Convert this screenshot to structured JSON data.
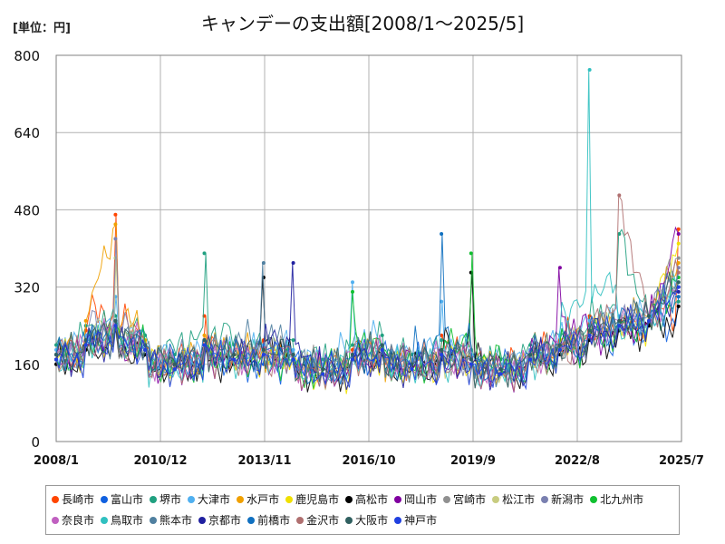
{
  "unit_label": "[単位：円]",
  "chart_data": {
    "type": "line",
    "title": "キャンデーの支出額[2008/1～2025/5]",
    "xlabel": "",
    "ylabel": "",
    "ylim": [
      0,
      800
    ],
    "yticks": [
      0,
      160,
      320,
      480,
      640,
      800
    ],
    "x_range": [
      "2008/1",
      "2025/5"
    ],
    "xticks": [
      "2008/1",
      "2010/12",
      "2013/11",
      "2016/10",
      "2019/9",
      "2022/8",
      "2025/7"
    ],
    "grid": true,
    "legend_position": "bottom",
    "series": [
      {
        "name": "長崎市",
        "color": "#ff4500",
        "values": [
          180,
          230,
          470,
          200,
          150,
          260,
          170,
          210,
          180,
          150,
          190,
          200,
          160,
          220,
          175,
          150,
          190,
          210,
          260,
          230,
          240,
          440
        ]
      },
      {
        "name": "富山市",
        "color": "#1060e0",
        "values": [
          170,
          210,
          250,
          190,
          160,
          200,
          170,
          160,
          180,
          150,
          170,
          190,
          160,
          180,
          170,
          150,
          180,
          200,
          210,
          230,
          240,
          300
        ]
      },
      {
        "name": "堺市",
        "color": "#20a080",
        "values": [
          200,
          240,
          260,
          220,
          180,
          390,
          200,
          190,
          210,
          170,
          200,
          220,
          180,
          210,
          190,
          170,
          200,
          220,
          240,
          430,
          250,
          290
        ]
      },
      {
        "name": "大津市",
        "color": "#50b0f0",
        "values": [
          190,
          220,
          300,
          200,
          170,
          210,
          180,
          200,
          190,
          160,
          330,
          190,
          170,
          290,
          180,
          160,
          190,
          220,
          250,
          260,
          250,
          320
        ]
      },
      {
        "name": "水戸市",
        "color": "#f0a000",
        "values": [
          180,
          250,
          450,
          210,
          160,
          220,
          180,
          190,
          170,
          150,
          180,
          200,
          160,
          190,
          170,
          150,
          180,
          200,
          230,
          250,
          260,
          370
        ]
      },
      {
        "name": "鹿児島市",
        "color": "#f0e000",
        "values": [
          170,
          200,
          240,
          190,
          150,
          200,
          170,
          180,
          170,
          140,
          170,
          190,
          150,
          180,
          160,
          140,
          170,
          190,
          220,
          240,
          250,
          410
        ]
      },
      {
        "name": "高松市",
        "color": "#000000",
        "values": [
          160,
          190,
          230,
          180,
          150,
          190,
          160,
          340,
          170,
          140,
          170,
          180,
          150,
          170,
          350,
          140,
          170,
          180,
          210,
          230,
          240,
          280
        ]
      },
      {
        "name": "岡山市",
        "color": "#8000a0",
        "values": [
          170,
          200,
          240,
          190,
          150,
          200,
          170,
          180,
          170,
          140,
          170,
          190,
          150,
          180,
          160,
          140,
          170,
          360,
          220,
          240,
          250,
          430
        ]
      },
      {
        "name": "宮崎市",
        "color": "#909090",
        "values": [
          180,
          210,
          250,
          200,
          160,
          210,
          180,
          190,
          180,
          150,
          180,
          200,
          160,
          190,
          170,
          150,
          180,
          200,
          230,
          250,
          260,
          380
        ]
      },
      {
        "name": "松江市",
        "color": "#c8cc80",
        "values": [
          170,
          200,
          380,
          190,
          150,
          200,
          170,
          180,
          170,
          140,
          170,
          190,
          150,
          180,
          160,
          140,
          170,
          190,
          220,
          240,
          250,
          330
        ]
      },
      {
        "name": "新潟市",
        "color": "#7a80b0",
        "values": [
          180,
          210,
          420,
          200,
          160,
          210,
          180,
          190,
          180,
          150,
          180,
          200,
          160,
          190,
          170,
          150,
          180,
          200,
          230,
          250,
          260,
          360
        ]
      },
      {
        "name": "北九州市",
        "color": "#10c030",
        "values": [
          170,
          200,
          240,
          190,
          150,
          200,
          170,
          180,
          170,
          140,
          310,
          190,
          150,
          180,
          390,
          140,
          170,
          190,
          220,
          240,
          250,
          340
        ]
      },
      {
        "name": "奈良市",
        "color": "#c060c0",
        "values": [
          180,
          210,
          250,
          200,
          160,
          210,
          180,
          190,
          180,
          150,
          180,
          200,
          160,
          190,
          170,
          150,
          180,
          200,
          230,
          250,
          260,
          320
        ]
      },
      {
        "name": "鳥取市",
        "color": "#30c0c0",
        "values": [
          170,
          200,
          240,
          190,
          150,
          200,
          170,
          180,
          170,
          140,
          170,
          190,
          150,
          180,
          160,
          140,
          170,
          190,
          770,
          240,
          250,
          330
        ]
      },
      {
        "name": "熊本市",
        "color": "#5080a0",
        "values": [
          180,
          210,
          250,
          200,
          160,
          210,
          180,
          370,
          180,
          150,
          180,
          200,
          160,
          190,
          170,
          150,
          180,
          200,
          230,
          250,
          260,
          350
        ]
      },
      {
        "name": "京都市",
        "color": "#2020a0",
        "values": [
          170,
          200,
          240,
          190,
          150,
          200,
          170,
          180,
          370,
          140,
          170,
          190,
          150,
          180,
          160,
          140,
          170,
          190,
          220,
          240,
          250,
          310
        ]
      },
      {
        "name": "前橋市",
        "color": "#1070c0",
        "values": [
          180,
          210,
          250,
          200,
          160,
          210,
          180,
          190,
          180,
          150,
          180,
          200,
          160,
          430,
          170,
          150,
          180,
          200,
          230,
          250,
          260,
          300
        ]
      },
      {
        "name": "金沢市",
        "color": "#b07070",
        "values": [
          170,
          200,
          240,
          190,
          150,
          200,
          170,
          180,
          170,
          140,
          170,
          190,
          150,
          180,
          160,
          140,
          170,
          190,
          220,
          510,
          250,
          350
        ]
      },
      {
        "name": "大阪市",
        "color": "#306060",
        "values": [
          180,
          210,
          250,
          200,
          160,
          210,
          180,
          190,
          180,
          150,
          180,
          200,
          160,
          190,
          170,
          150,
          180,
          200,
          230,
          250,
          260,
          330
        ]
      },
      {
        "name": "神戸市",
        "color": "#2040e0",
        "values": [
          170,
          200,
          240,
          190,
          150,
          200,
          170,
          180,
          170,
          140,
          170,
          190,
          150,
          180,
          160,
          140,
          170,
          190,
          220,
          240,
          250,
          320
        ]
      }
    ]
  }
}
